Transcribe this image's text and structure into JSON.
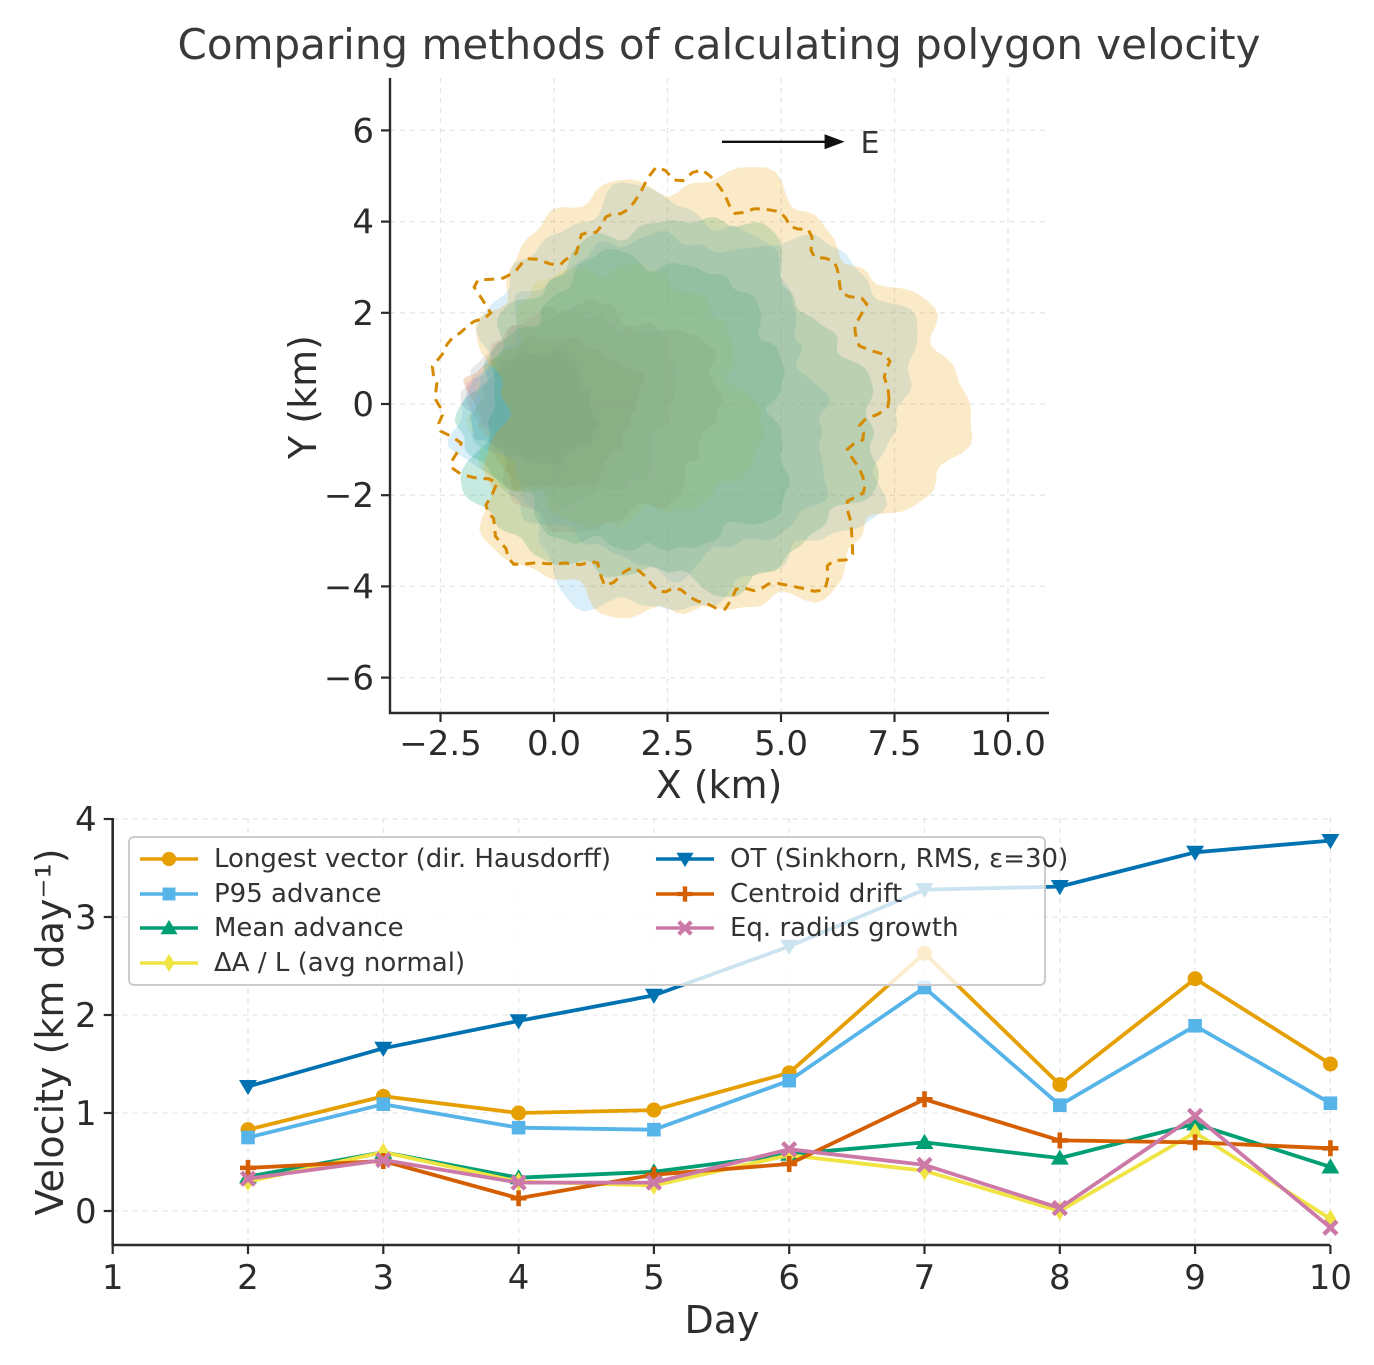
{
  "figure": {
    "title": "Comparing methods of calculating polygon velocity"
  },
  "chart_data": [
    {
      "type": "polygon-overlay",
      "title": "Comparing methods of calculating polygon velocity",
      "xlabel": "X (km)",
      "ylabel": "Y (km)",
      "xticks": [
        -2.5,
        0.0,
        2.5,
        5.0,
        7.5,
        10.0
      ],
      "yticks": [
        6,
        4,
        2,
        0,
        -2,
        -4,
        -6
      ],
      "xlim": [
        -3.6,
        10.9
      ],
      "ylim": [
        -6.8,
        7.2
      ],
      "grid": true,
      "compass": {
        "label": "E",
        "y": 5.75,
        "x_start": 3.7,
        "x_end": 6.4,
        "label_x": 6.75
      },
      "fill_opacity": 0.22,
      "polygons": [
        {
          "day": 1,
          "center": [
            -0.4,
            -0.1
          ],
          "radius": 1.25,
          "color": "#0072B2"
        },
        {
          "day": 2,
          "center": [
            0.0,
            -0.15
          ],
          "radius": 1.7,
          "color": "#D55E00"
        },
        {
          "day": 3,
          "center": [
            0.45,
            0.0
          ],
          "radius": 2.1,
          "color": "#999999"
        },
        {
          "day": 4,
          "center": [
            0.9,
            -0.2
          ],
          "radius": 2.5,
          "color": "#CC79A7"
        },
        {
          "day": 5,
          "center": [
            1.35,
            0.1
          ],
          "radius": 2.9,
          "color": "#F0E442"
        },
        {
          "day": 6,
          "center": [
            1.8,
            -0.1
          ],
          "radius": 3.3,
          "color": "#009E73"
        },
        {
          "day": 7,
          "center": [
            2.2,
            0.0
          ],
          "radius": 3.7,
          "color": "#56B4E9"
        },
        {
          "day": 8,
          "center": [
            2.6,
            -0.15
          ],
          "radius": 4.1,
          "color": "#009E73"
        },
        {
          "day": 9,
          "center": [
            2.95,
            0.1
          ],
          "radius": 4.5,
          "color": "#56B4E9"
        },
        {
          "day": 10,
          "center": [
            3.35,
            0.1
          ],
          "radius": 4.95,
          "color": "#E69F00"
        }
      ],
      "outline": {
        "center": [
          2.55,
          0.1
        ],
        "radius": 4.55,
        "color": "#D68A00",
        "style": "dashed"
      }
    },
    {
      "type": "line",
      "xlabel": "Day",
      "ylabel": "Velocity (km day⁻¹)",
      "x": [
        2,
        3,
        4,
        5,
        6,
        7,
        8,
        9,
        10
      ],
      "xticks": [
        1,
        2,
        3,
        4,
        5,
        6,
        7,
        8,
        9,
        10
      ],
      "yticks": [
        0,
        1,
        2,
        3,
        4
      ],
      "xlim": [
        1,
        10
      ],
      "ylim": [
        -0.35,
        4.0
      ],
      "grid": true,
      "legend_position": "upper left",
      "legend_columns": 2,
      "legend_column_split": [
        4,
        3
      ],
      "series": [
        {
          "name": "Longest vector (dir. Hausdorff)",
          "color": "#E69F00",
          "marker": "circle",
          "values": [
            0.83,
            1.17,
            1.0,
            1.03,
            1.41,
            2.63,
            1.29,
            2.37,
            1.5
          ]
        },
        {
          "name": "P95 advance",
          "color": "#56B4E9",
          "marker": "square",
          "values": [
            0.75,
            1.09,
            0.85,
            0.83,
            1.33,
            2.28,
            1.08,
            1.89,
            1.1
          ]
        },
        {
          "name": "Mean advance",
          "color": "#009E73",
          "marker": "triangle-up",
          "values": [
            0.35,
            0.6,
            0.34,
            0.4,
            0.58,
            0.7,
            0.54,
            0.89,
            0.45
          ]
        },
        {
          "name": "ΔA / L (avg normal)",
          "color": "#F0E442",
          "marker": "diamond",
          "values": [
            0.3,
            0.6,
            0.3,
            0.26,
            0.57,
            0.41,
            0.0,
            0.8,
            -0.08
          ]
        },
        {
          "name": "OT (Sinkhorn, RMS, ε=30)",
          "color": "#0072B2",
          "marker": "triangle-down",
          "values": [
            1.27,
            1.66,
            1.94,
            2.2,
            2.7,
            3.28,
            3.31,
            3.66,
            3.78
          ]
        },
        {
          "name": "Centroid drift",
          "color": "#D55E00",
          "marker": "plus",
          "values": [
            0.44,
            0.51,
            0.13,
            0.37,
            0.48,
            1.14,
            0.72,
            0.7,
            0.64
          ]
        },
        {
          "name": "Eq. radius growth",
          "color": "#CC79A7",
          "marker": "x",
          "values": [
            0.33,
            0.52,
            0.29,
            0.29,
            0.63,
            0.47,
            0.03,
            0.97,
            -0.17
          ]
        }
      ]
    }
  ]
}
